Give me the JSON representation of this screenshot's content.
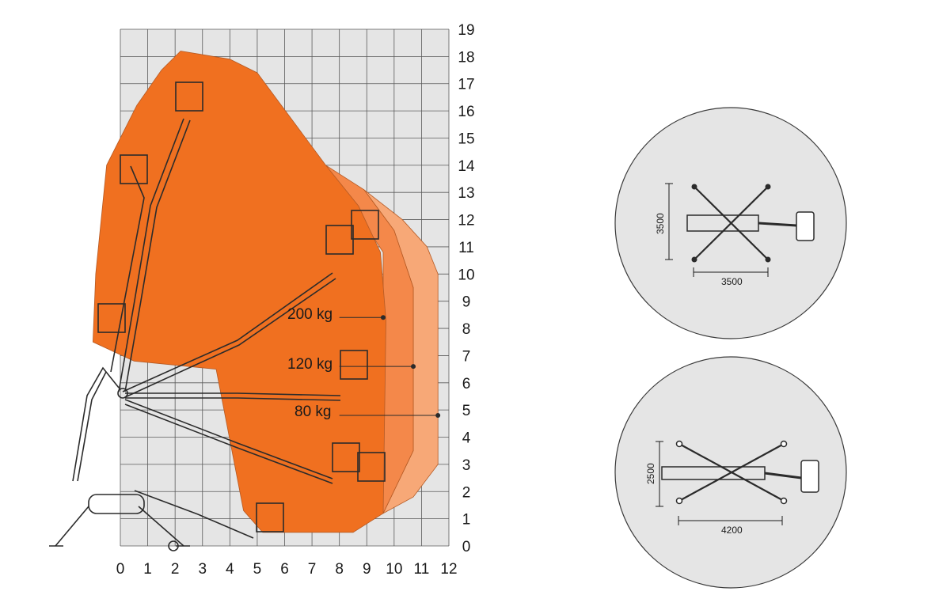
{
  "chart_data": {
    "type": "reach-diagram",
    "x_ticks": [
      "0",
      "1",
      "2",
      "3",
      "4",
      "5",
      "6",
      "7",
      "8",
      "9",
      "10",
      "11",
      "12"
    ],
    "y_ticks": [
      "0",
      "1",
      "2",
      "3",
      "4",
      "5",
      "6",
      "7",
      "8",
      "9",
      "10",
      "11",
      "12",
      "13",
      "14",
      "15",
      "16",
      "17",
      "18",
      "19"
    ],
    "xlim": [
      0,
      12
    ],
    "ylim": [
      0,
      19
    ],
    "grid": true,
    "zones": [
      {
        "load": "200 kg",
        "max_outreach": 9.6,
        "label_height": 8.4,
        "color": "#f07020"
      },
      {
        "load": "120 kg",
        "max_outreach": 10.7,
        "label_height": 6.6,
        "color": "#f4884a"
      },
      {
        "load": "80 kg",
        "max_outreach": 11.6,
        "label_height": 4.8,
        "color": "#f7a877"
      }
    ]
  },
  "footprints": [
    {
      "name": "outriggers-wide",
      "width_label": "3500",
      "length_label": "3500"
    },
    {
      "name": "outriggers-narrow",
      "width_label": "2500",
      "length_label": "4200"
    }
  ],
  "colors": {
    "grid_bg": "#e5e5e5",
    "grid_line": "#5a5a5a",
    "zone_200": "#f07020",
    "zone_120": "#f4884a",
    "zone_80": "#f7a877",
    "circle_fill": "#e5e5e5",
    "circle_stroke": "#3a3a3a"
  }
}
